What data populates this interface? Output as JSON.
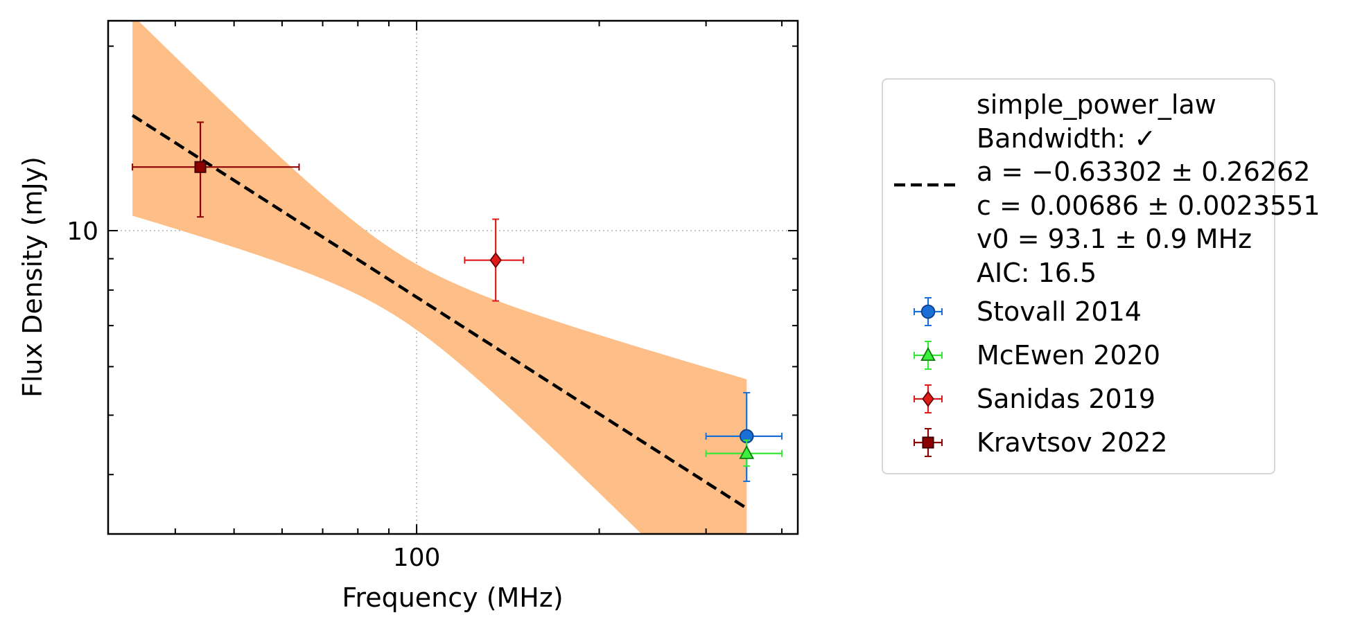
{
  "chart_data": {
    "type": "scatter",
    "xlabel": "Frequency (MHz)",
    "ylabel": "Flux Density (mJy)",
    "x_scale": "log",
    "y_scale": "log",
    "xlim": [
      31,
      425
    ],
    "ylim": [
      3.2,
      22
    ],
    "xticks": [
      {
        "value": 100,
        "label": "100"
      }
    ],
    "yticks": [
      {
        "value": 10,
        "label": "10"
      }
    ],
    "grid": true,
    "legend_position": "outside-right",
    "fit": {
      "name": "simple_power_law",
      "lines": [
        "simple_power_law",
        "Bandwidth: ✓",
        "a = −0.63302 ± 0.26262",
        "c = 0.00686 ± 0.0023551",
        "v0 = 93.1 ± 0.9 MHz",
        "AIC: 16.5"
      ],
      "x_range": [
        34,
        350
      ],
      "a": -0.633,
      "a_err": 0.2626,
      "v0": 93.1,
      "color": "#000000",
      "band_color": "#fdbf87"
    },
    "series": [
      {
        "name": "Stovall 2014",
        "marker": "circle",
        "color": "#1a6fd6",
        "edge": "#0a3d8a",
        "points": [
          {
            "x": 350,
            "y": 4.62,
            "xerr": [
              50,
              50
            ],
            "yerr": [
              0.72,
              0.82
            ]
          }
        ]
      },
      {
        "name": "McEwen 2020",
        "marker": "triangle",
        "color": "#3ef03e",
        "edge": "#0a7a0a",
        "points": [
          {
            "x": 350,
            "y": 4.33,
            "xerr": [
              50,
              50
            ],
            "yerr": [
              0.2,
              0.22
            ]
          }
        ]
      },
      {
        "name": "Sanidas 2019",
        "marker": "diamond",
        "color": "#e01b1b",
        "edge": "#6a0000",
        "points": [
          {
            "x": 135,
            "y": 8.95,
            "xerr": [
              15,
              15
            ],
            "yerr": [
              1.27,
              1.49
            ]
          }
        ]
      },
      {
        "name": "Kravtsov 2022",
        "marker": "square",
        "color": "#8b0000",
        "edge": "#3a0000",
        "points": [
          {
            "x": 44,
            "y": 12.7,
            "xerr": [
              10,
              20
            ],
            "yerr": [
              2.17,
              2.33
            ]
          }
        ]
      }
    ]
  }
}
